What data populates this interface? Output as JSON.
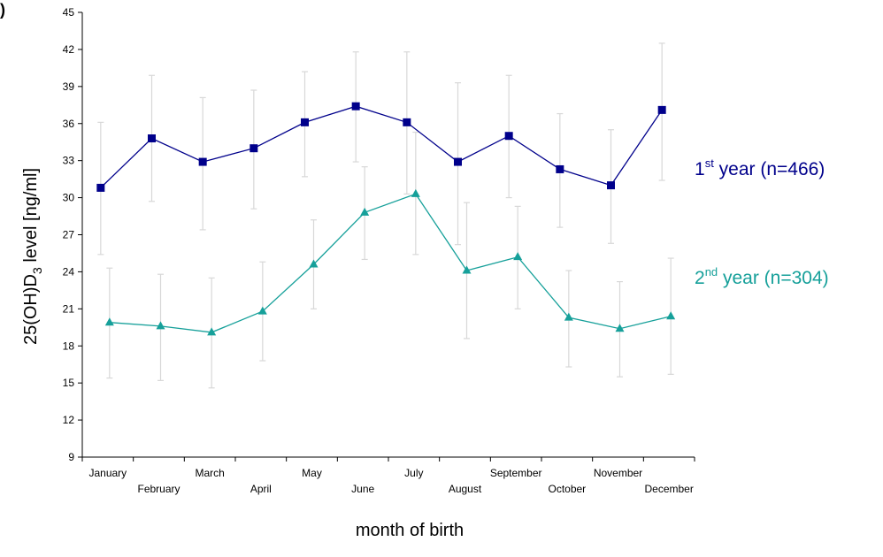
{
  "chart_data": {
    "type": "line",
    "panel_label": ")",
    "xlabel": "month of birth",
    "ylabel": {
      "main": "25(OH)D",
      "subscript": "3",
      "rest": " level [ng/ml]"
    },
    "ylim": [
      9,
      45
    ],
    "yticks": [
      9,
      12,
      15,
      18,
      21,
      24,
      27,
      30,
      33,
      36,
      39,
      42,
      45
    ],
    "grid": false,
    "legend_placement": "right, next to each series",
    "categories": [
      "January",
      "February",
      "March",
      "April",
      "May",
      "June",
      "July",
      "August",
      "September",
      "October",
      "November",
      "December"
    ],
    "series": [
      {
        "name": "1st year (n=466)",
        "label_parts": [
          "1",
          "st",
          " year (n=466)"
        ],
        "color": "#00008B",
        "marker": "square",
        "values": [
          30.8,
          34.8,
          32.9,
          34.0,
          36.1,
          37.4,
          36.1,
          32.9,
          35.0,
          32.3,
          31.0,
          37.1
        ],
        "err_low": [
          25.4,
          29.7,
          27.4,
          29.1,
          31.7,
          32.9,
          30.3,
          26.2,
          30.0,
          27.6,
          26.3,
          31.4
        ],
        "err_high": [
          36.1,
          39.9,
          38.1,
          38.7,
          40.2,
          41.8,
          41.8,
          39.3,
          39.9,
          36.8,
          35.5,
          42.5
        ]
      },
      {
        "name": "2nd year (n=304)",
        "label_parts": [
          "2",
          "nd",
          " year (n=304)"
        ],
        "color": "#16A09A",
        "marker": "triangle",
        "values": [
          19.9,
          19.6,
          19.1,
          20.8,
          24.6,
          28.8,
          30.3,
          24.1,
          25.2,
          20.3,
          19.4,
          20.4
        ],
        "err_low": [
          15.4,
          15.2,
          14.6,
          16.8,
          21.0,
          25.0,
          25.4,
          18.6,
          21.0,
          16.3,
          15.5,
          15.7
        ],
        "err_high": [
          24.3,
          23.8,
          23.5,
          24.8,
          28.2,
          32.5,
          35.3,
          29.6,
          29.3,
          24.1,
          23.2,
          25.1
        ]
      }
    ]
  }
}
